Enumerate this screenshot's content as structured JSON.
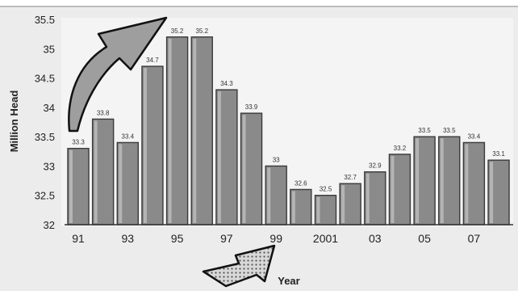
{
  "chart_data": {
    "type": "bar",
    "ylabel": "Million Head",
    "xlabel": "Year",
    "ylim": [
      32,
      35.5
    ],
    "y_ticks": [
      "32",
      "32.5",
      "33",
      "33.5",
      "34",
      "34.5",
      "35",
      "35.5"
    ],
    "x_tick_labels": [
      "91",
      "93",
      "95",
      "97",
      "99",
      "2001",
      "03",
      "05",
      "07"
    ],
    "categories": [
      "1991",
      "1992",
      "1993",
      "1994",
      "1995",
      "1996",
      "1997",
      "1998",
      "1999",
      "2000",
      "2001",
      "2002",
      "2003",
      "2004",
      "2005",
      "2006",
      "2007",
      "2008"
    ],
    "values": [
      33.3,
      33.8,
      33.4,
      34.7,
      35.2,
      35.2,
      34.3,
      33.9,
      33.0,
      32.6,
      32.5,
      32.7,
      32.9,
      33.2,
      33.5,
      33.5,
      33.4,
      33.1
    ],
    "value_labels": [
      "33.3",
      "33.8",
      "33.4",
      "34.7",
      "35.2",
      "35.2",
      "34.3",
      "33.9",
      "33",
      "32.6",
      "32.5",
      "32.7",
      "32.9",
      "33.2",
      "33.5",
      "33.5",
      "33.4",
      "33.1"
    ],
    "grid": false,
    "colors": {
      "bar": "#8a8a8a",
      "bar_edge": "#3a3a3a",
      "plot_bg": "#f2f2f2",
      "outer_bg": "#ebebeb"
    },
    "annotations": [
      {
        "type": "arrow",
        "style": "solid-gray",
        "meaning": "up-left arrow near start of series"
      },
      {
        "type": "arrow",
        "style": "dotted",
        "meaning": "arrow near x-axis pointing up-right"
      }
    ]
  }
}
